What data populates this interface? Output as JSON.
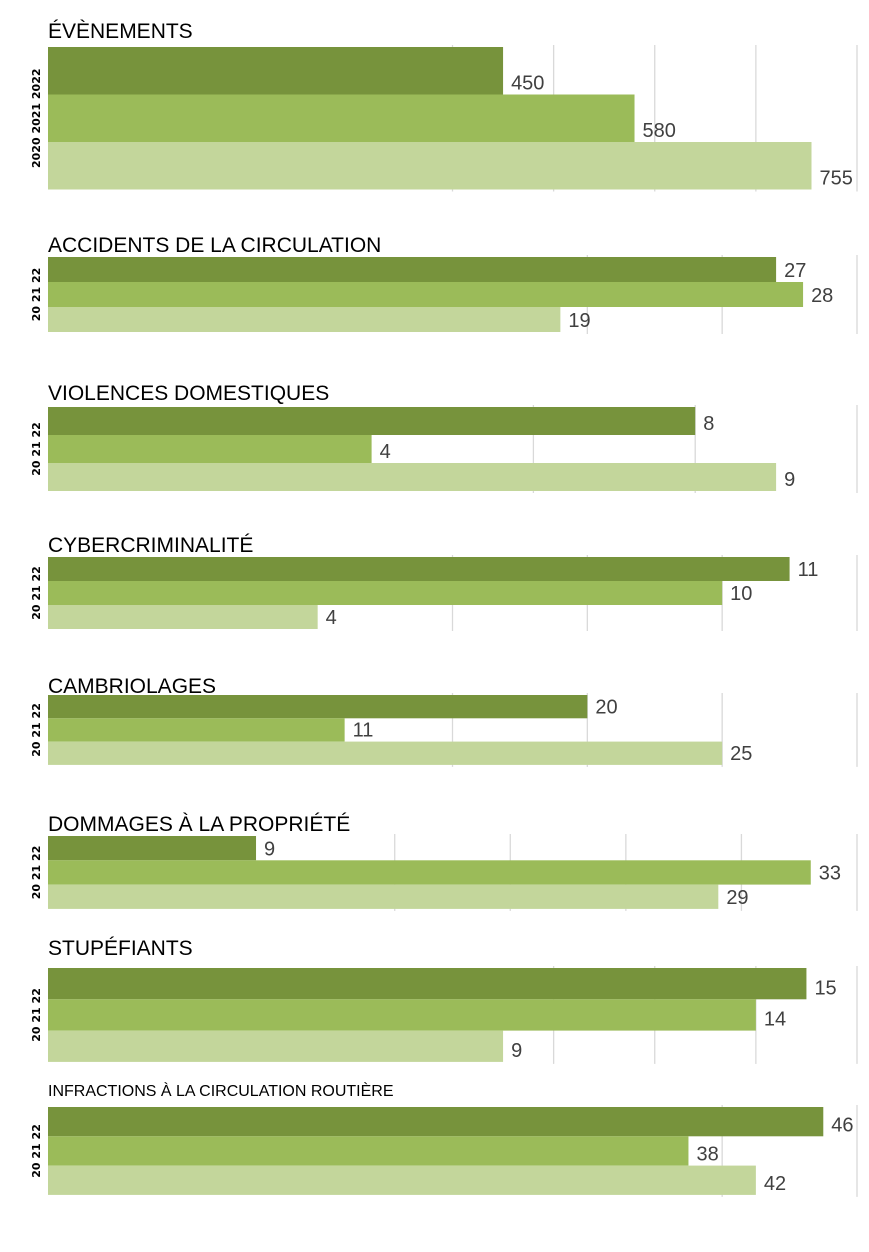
{
  "colors": {
    "y2022": "#77933c",
    "y2021": "#9bbb59",
    "y2020": "#c3d69b"
  },
  "chart_data": [
    {
      "type": "bar",
      "title": "ÉVÈNEMENTS",
      "y_labels": [
        "2022",
        "2021",
        "2020"
      ],
      "values": [
        450,
        580,
        755
      ],
      "xlim": [
        0,
        800
      ],
      "gridlines": [
        400,
        500,
        600,
        700,
        800
      ]
    },
    {
      "type": "bar",
      "title": "ACCIDENTS DE LA CIRCULATION",
      "y_labels": [
        "22",
        "21",
        "20"
      ],
      "values": [
        27,
        28,
        19
      ],
      "xlim": [
        0,
        30
      ],
      "gridlines": [
        20,
        25,
        30
      ]
    },
    {
      "type": "bar",
      "title": "VIOLENCES DOMESTIQUES",
      "y_labels": [
        "22",
        "21",
        "20"
      ],
      "values": [
        8,
        4,
        9
      ],
      "xlim": [
        0,
        10
      ],
      "gridlines": [
        6,
        8,
        10
      ]
    },
    {
      "type": "bar",
      "title": "CYBERCRIMINALITÉ",
      "y_labels": [
        "22",
        "21",
        "20"
      ],
      "values": [
        11,
        10,
        4
      ],
      "xlim": [
        0,
        12
      ],
      "gridlines": [
        6,
        8,
        10,
        12
      ]
    },
    {
      "type": "bar",
      "title": "CAMBRIOLAGES",
      "y_labels": [
        "22",
        "21",
        "20"
      ],
      "values": [
        20,
        11,
        25
      ],
      "xlim": [
        0,
        30
      ],
      "gridlines": [
        15,
        20,
        25,
        30
      ]
    },
    {
      "type": "bar",
      "title": "DOMMAGES À LA PROPRIÉTÉ",
      "y_labels": [
        "22",
        "21",
        "20"
      ],
      "values": [
        9,
        33,
        29
      ],
      "xlim": [
        0,
        35
      ],
      "gridlines": [
        15,
        20,
        25,
        30,
        35
      ]
    },
    {
      "type": "bar",
      "title": "STUPÉFIANTS",
      "y_labels": [
        "22",
        "21",
        "20"
      ],
      "values": [
        15,
        14,
        9
      ],
      "xlim": [
        0,
        16
      ],
      "gridlines": [
        10,
        12,
        14,
        16
      ]
    },
    {
      "type": "bar",
      "title": "INFRACTIONS À LA CIRCULATION ROUTIÈRE",
      "y_labels": [
        "22",
        "21",
        "20"
      ],
      "values": [
        46,
        38,
        42
      ],
      "xlim": [
        0,
        48
      ],
      "gridlines": [
        40,
        48
      ]
    }
  ]
}
